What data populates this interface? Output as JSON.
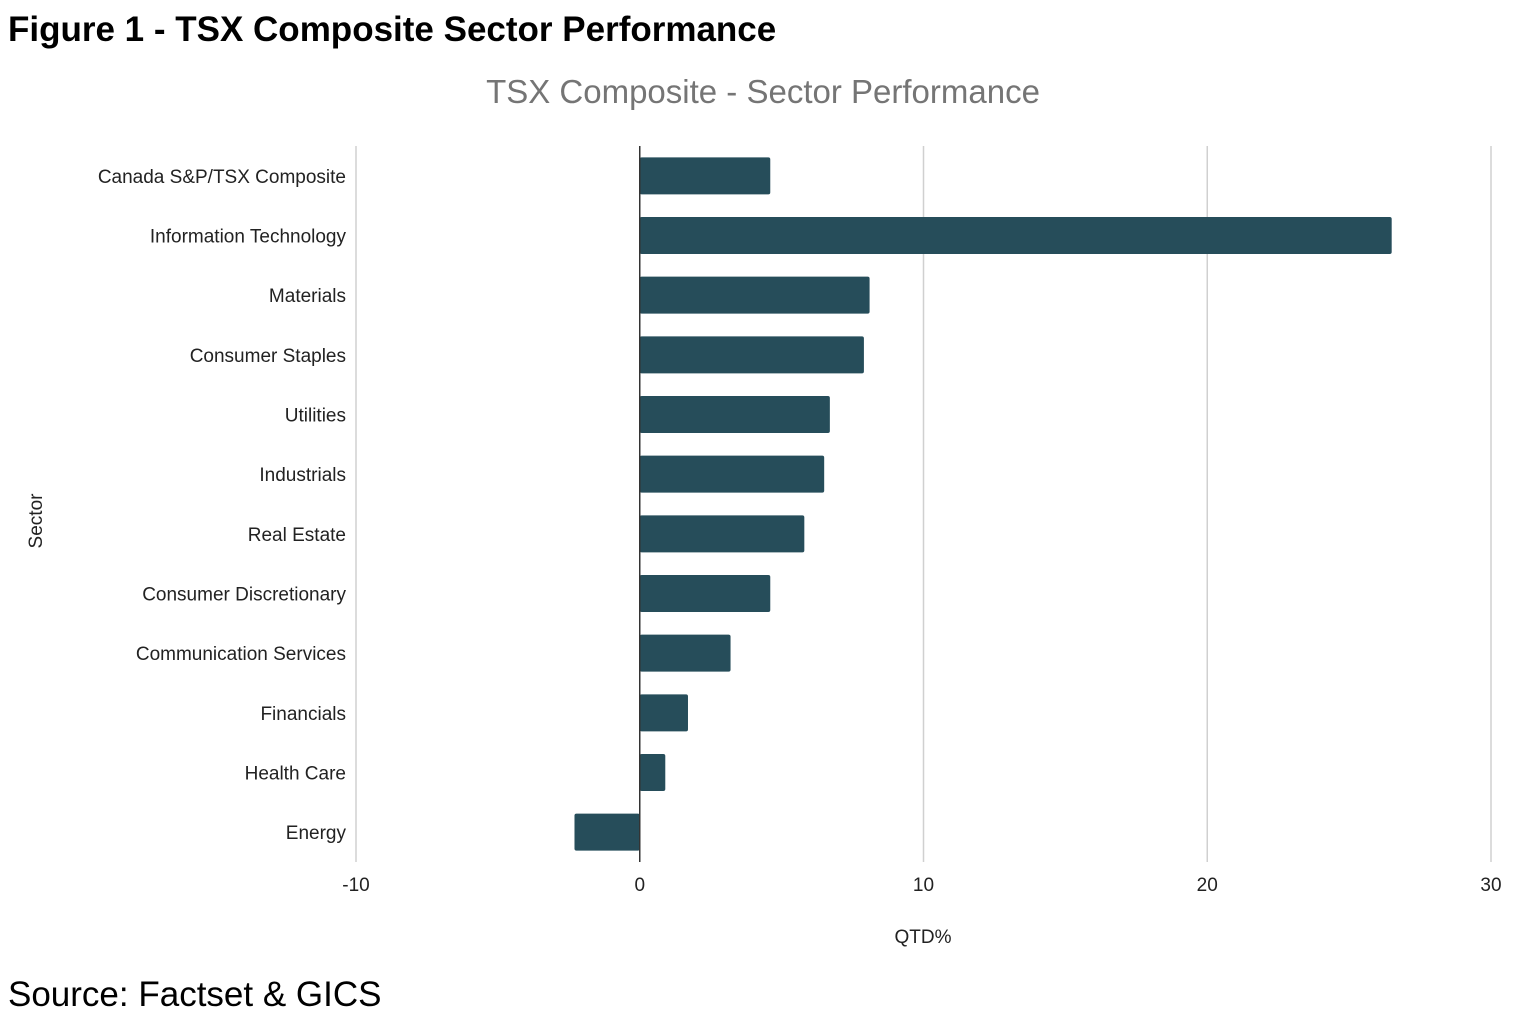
{
  "figure": {
    "title": "Figure 1 - TSX Composite Sector Performance",
    "source": "Source: Factset & GICS"
  },
  "colors": {
    "bar": "#264d5a",
    "grid": "#d0d0d0",
    "zero_axis": "#333333",
    "text": "#222222",
    "title": "#757575"
  },
  "chart_data": {
    "type": "bar",
    "orientation": "horizontal",
    "title": "TSX Composite - Sector Performance",
    "xlabel": "QTD%",
    "ylabel": "Sector",
    "xlim": [
      -10,
      30
    ],
    "xticks": [
      -10,
      0,
      10,
      20,
      30
    ],
    "grid": true,
    "legend": "none",
    "categories": [
      "Canada S&P/TSX Composite",
      "Information Technology",
      "Materials",
      "Consumer Staples",
      "Utilities",
      "Industrials",
      "Real Estate",
      "Consumer Discretionary",
      "Communication Services",
      "Financials",
      "Health Care",
      "Energy"
    ],
    "values": [
      4.6,
      26.5,
      8.1,
      7.9,
      6.7,
      6.5,
      5.8,
      4.6,
      3.2,
      1.7,
      0.9,
      -2.3
    ]
  }
}
